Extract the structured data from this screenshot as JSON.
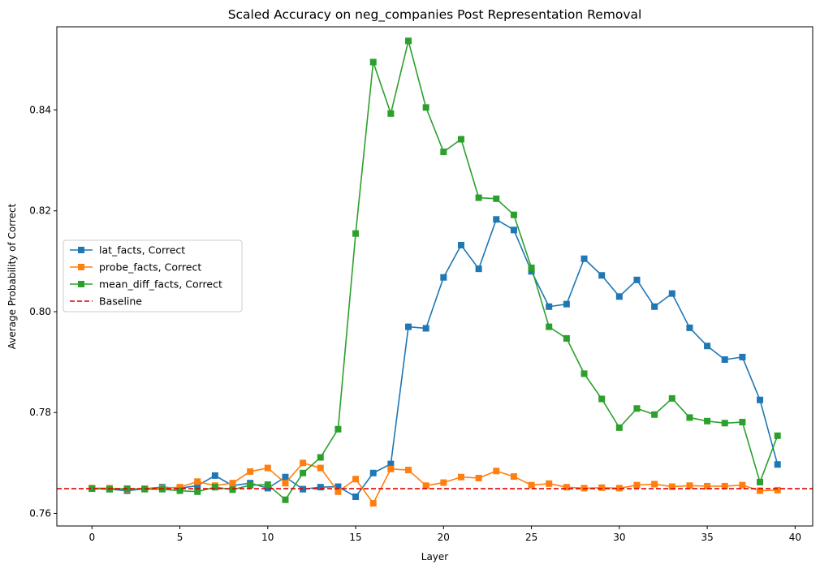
{
  "chart_data": {
    "type": "line",
    "title": "Scaled Accuracy on neg_companies Post Representation Removal",
    "xlabel": "Layer",
    "ylabel": "Average Probability of Correct",
    "xlim": [
      -2,
      41
    ],
    "ylim": [
      0.7575,
      0.8565
    ],
    "xticks": [
      0,
      5,
      10,
      15,
      20,
      25,
      30,
      35,
      40
    ],
    "yticks": [
      0.76,
      0.78,
      0.8,
      0.82,
      0.84
    ],
    "ytick_labels": [
      "0.76",
      "0.78",
      "0.80",
      "0.82",
      "0.84"
    ],
    "x": [
      0,
      1,
      2,
      3,
      4,
      5,
      6,
      7,
      8,
      9,
      10,
      11,
      12,
      13,
      14,
      15,
      16,
      17,
      18,
      19,
      20,
      21,
      22,
      23,
      24,
      25,
      26,
      27,
      28,
      29,
      30,
      31,
      32,
      33,
      34,
      35,
      36,
      37,
      38,
      39
    ],
    "series": [
      {
        "name": "lat_facts, Correct",
        "color": "#1f77b4",
        "marker": "square",
        "values": [
          0.765,
          0.7648,
          0.7645,
          0.7649,
          0.7652,
          0.765,
          0.7655,
          0.7675,
          0.7655,
          0.766,
          0.765,
          0.7672,
          0.7648,
          0.7652,
          0.7653,
          0.7633,
          0.768,
          0.7698,
          0.797,
          0.7967,
          0.8068,
          0.8132,
          0.8085,
          0.8183,
          0.8162,
          0.808,
          0.801,
          0.8015,
          0.8105,
          0.8072,
          0.803,
          0.8063,
          0.801,
          0.8036,
          0.7968,
          0.7932,
          0.7905,
          0.791,
          0.7825,
          0.7697
        ]
      },
      {
        "name": "probe_facts, Correct",
        "color": "#ff7f0e",
        "marker": "square",
        "values": [
          0.765,
          0.765,
          0.7648,
          0.7649,
          0.765,
          0.7652,
          0.7663,
          0.7655,
          0.766,
          0.7683,
          0.769,
          0.766,
          0.77,
          0.769,
          0.7643,
          0.7668,
          0.762,
          0.7688,
          0.7686,
          0.7655,
          0.7661,
          0.7672,
          0.767,
          0.7684,
          0.7673,
          0.7656,
          0.7659,
          0.7652,
          0.765,
          0.7651,
          0.765,
          0.7656,
          0.7658,
          0.7653,
          0.7655,
          0.7654,
          0.7654,
          0.7656,
          0.7645,
          0.7646
        ]
      },
      {
        "name": "mean_diff_facts, Correct",
        "color": "#2ca02c",
        "marker": "square",
        "values": [
          0.7649,
          0.7648,
          0.7649,
          0.7648,
          0.7648,
          0.7645,
          0.7643,
          0.7652,
          0.7647,
          0.7656,
          0.7657,
          0.7627,
          0.768,
          0.7711,
          0.7767,
          0.8155,
          0.8495,
          0.8393,
          0.8537,
          0.8405,
          0.8317,
          0.8342,
          0.8226,
          0.8224,
          0.8192,
          0.8087,
          0.797,
          0.7947,
          0.7877,
          0.7827,
          0.777,
          0.7808,
          0.7796,
          0.7828,
          0.779,
          0.7783,
          0.7779,
          0.7781,
          0.7662,
          0.7754
        ]
      }
    ],
    "baseline": {
      "name": "Baseline",
      "value": 0.7649,
      "color": "#e00000",
      "style": "dashed"
    },
    "legend_position": "center-left",
    "grid": false
  }
}
